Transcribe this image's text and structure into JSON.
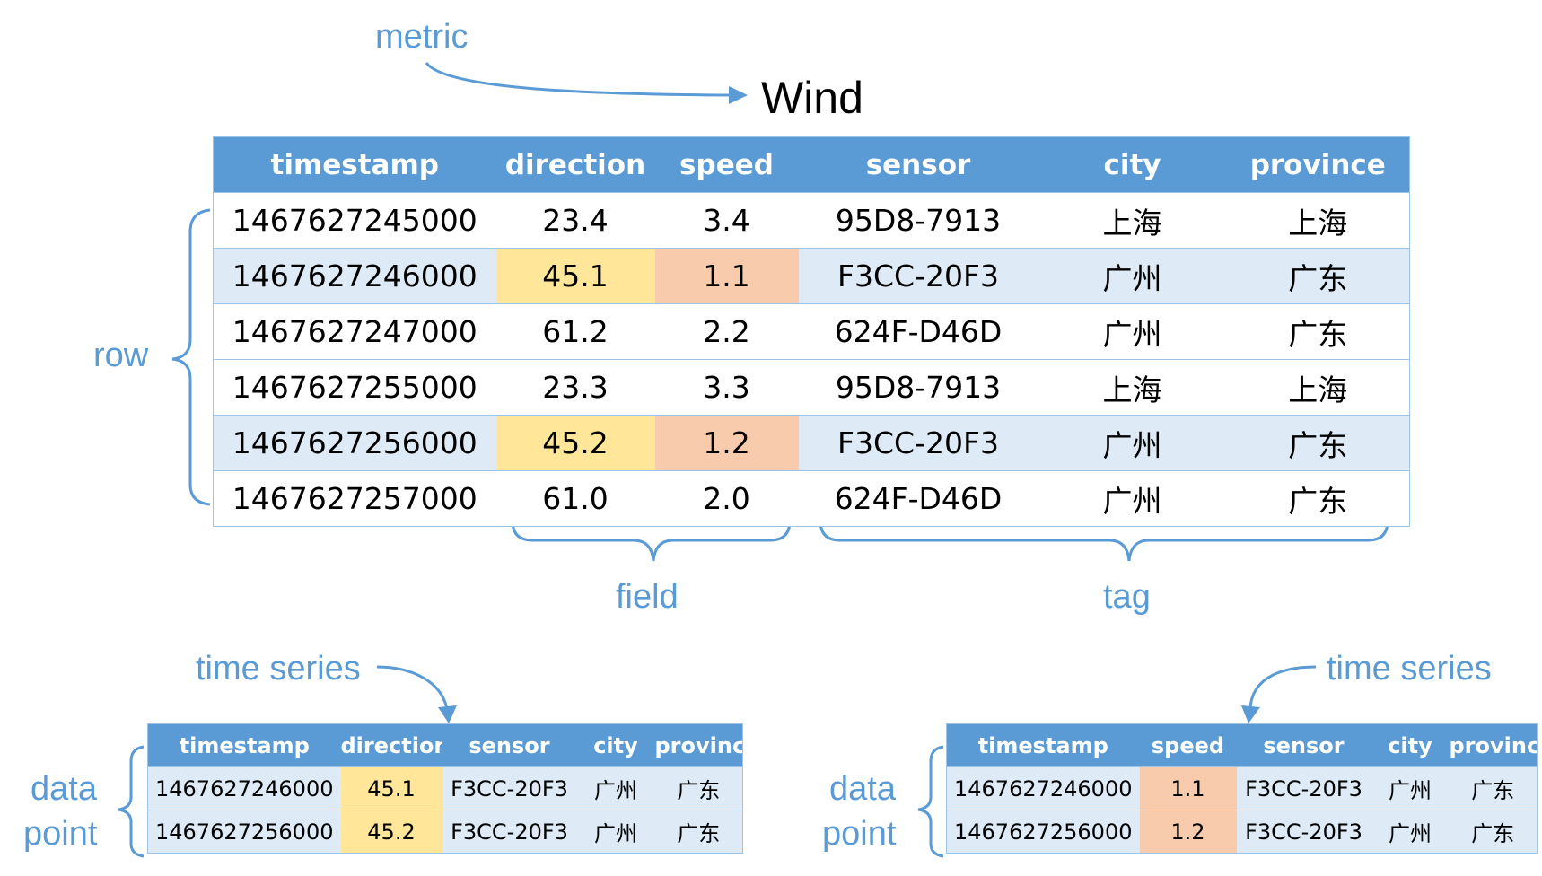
{
  "labels": {
    "metric": "metric",
    "metric_name": "Wind",
    "row": "row",
    "field": "field",
    "tag": "tag",
    "time_series_left": "time series",
    "time_series_right": "time series",
    "data_left": "data",
    "point_left": "point",
    "data_right": "data",
    "point_right": "point"
  },
  "main_table": {
    "headers": [
      "timestamp",
      "direction",
      "speed",
      "sensor",
      "city",
      "province"
    ],
    "rows": [
      [
        "1467627245000",
        "23.4",
        "3.4",
        "95D8-7913",
        "上海",
        "上海"
      ],
      [
        "1467627246000",
        "45.1",
        "1.1",
        "F3CC-20F3",
        "广州",
        "广东"
      ],
      [
        "1467627247000",
        "61.2",
        "2.2",
        "624F-D46D",
        "广州",
        "广东"
      ],
      [
        "1467627255000",
        "23.3",
        "3.3",
        "95D8-7913",
        "上海",
        "上海"
      ],
      [
        "1467627256000",
        "45.2",
        "1.2",
        "F3CC-20F3",
        "广州",
        "广东"
      ],
      [
        "1467627257000",
        "61.0",
        "2.0",
        "624F-D46D",
        "广州",
        "广东"
      ]
    ]
  },
  "series_left": {
    "headers": [
      "timestamp",
      "direction",
      "sensor",
      "city",
      "province"
    ],
    "rows": [
      [
        "1467627246000",
        "45.1",
        "F3CC-20F3",
        "广州",
        "广东"
      ],
      [
        "1467627256000",
        "45.2",
        "F3CC-20F3",
        "广州",
        "广东"
      ]
    ]
  },
  "series_right": {
    "headers": [
      "timestamp",
      "speed",
      "sensor",
      "city",
      "province"
    ],
    "rows": [
      [
        "1467627246000",
        "1.1",
        "F3CC-20F3",
        "广州",
        "广东"
      ],
      [
        "1467627256000",
        "1.2",
        "F3CC-20F3",
        "广州",
        "广东"
      ]
    ]
  },
  "colors": {
    "header_bg": "#5b9bd5",
    "row_alt_bg": "#deebf7",
    "direction_highlight": "#ffe699",
    "speed_highlight": "#f8cbad",
    "annotation": "#5b9bd5"
  }
}
